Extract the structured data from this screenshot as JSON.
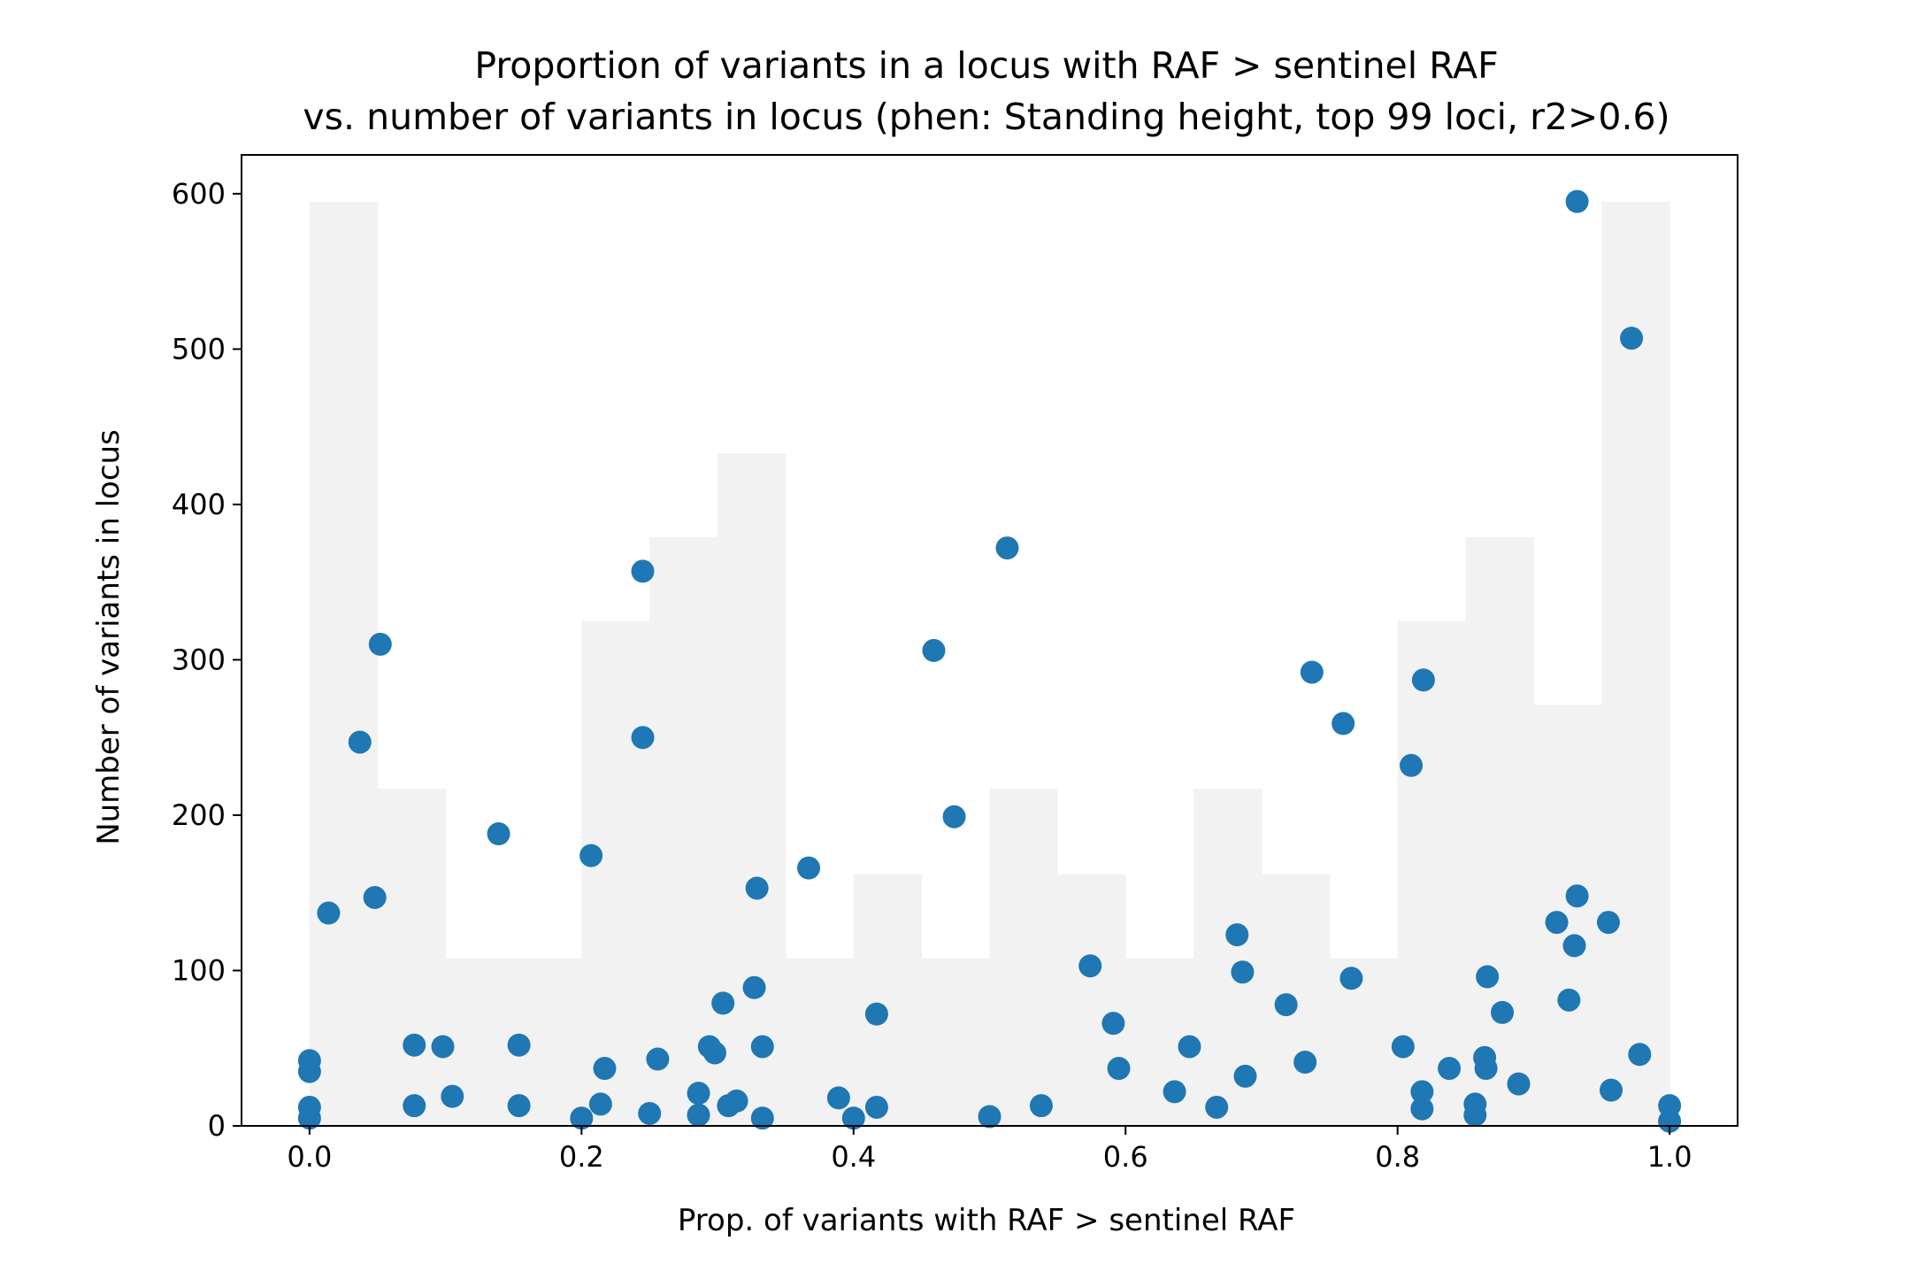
{
  "chart_data": {
    "type": "scatter",
    "title_lines": [
      "Proportion of variants in a locus with RAF > sentinel RAF",
      "vs. number of variants in locus (phen: Standing height, top 99 loci, r2>0.6)"
    ],
    "xlabel": "Prop. of variants with RAF > sentinel RAF",
    "ylabel": "Number of variants in locus",
    "xlim": [
      -0.05,
      1.05
    ],
    "ylim": [
      0,
      625
    ],
    "x_ticks": [
      0.0,
      0.2,
      0.4,
      0.6,
      0.8,
      1.0
    ],
    "x_tick_labels": [
      "0.0",
      "0.2",
      "0.4",
      "0.6",
      "0.8",
      "1.0"
    ],
    "y_ticks": [
      0,
      100,
      200,
      300,
      400,
      500,
      600
    ],
    "y_tick_labels": [
      "0",
      "100",
      "200",
      "300",
      "400",
      "500",
      "600"
    ],
    "grid": false,
    "colors": {
      "points": "#1f77b4",
      "histogram": "#f2f2f2",
      "axes": "#000000"
    },
    "background_histogram": {
      "bin_edges": [
        0.0,
        0.05,
        0.1,
        0.15,
        0.2,
        0.25,
        0.3,
        0.35,
        0.4,
        0.45,
        0.5,
        0.55,
        0.6,
        0.65,
        0.7,
        0.75,
        0.8,
        0.85,
        0.9,
        0.95,
        1.0
      ],
      "heights": [
        595,
        217,
        108,
        108,
        325,
        379,
        433,
        108,
        162,
        108,
        217,
        162,
        108,
        217,
        162,
        108,
        325,
        379,
        271,
        595
      ]
    },
    "points": [
      {
        "x": 0.0,
        "y": 42
      },
      {
        "x": 0.0,
        "y": 35
      },
      {
        "x": 0.0,
        "y": 12
      },
      {
        "x": 0.0,
        "y": 5
      },
      {
        "x": 0.014,
        "y": 137
      },
      {
        "x": 0.037,
        "y": 247
      },
      {
        "x": 0.048,
        "y": 147
      },
      {
        "x": 0.052,
        "y": 310
      },
      {
        "x": 0.077,
        "y": 52
      },
      {
        "x": 0.077,
        "y": 13
      },
      {
        "x": 0.098,
        "y": 51
      },
      {
        "x": 0.105,
        "y": 19
      },
      {
        "x": 0.139,
        "y": 188
      },
      {
        "x": 0.154,
        "y": 52
      },
      {
        "x": 0.154,
        "y": 13
      },
      {
        "x": 0.2,
        "y": 5
      },
      {
        "x": 0.207,
        "y": 174
      },
      {
        "x": 0.214,
        "y": 14
      },
      {
        "x": 0.217,
        "y": 37
      },
      {
        "x": 0.245,
        "y": 357
      },
      {
        "x": 0.245,
        "y": 250
      },
      {
        "x": 0.25,
        "y": 8
      },
      {
        "x": 0.256,
        "y": 43
      },
      {
        "x": 0.286,
        "y": 21
      },
      {
        "x": 0.286,
        "y": 7
      },
      {
        "x": 0.294,
        "y": 51
      },
      {
        "x": 0.298,
        "y": 47
      },
      {
        "x": 0.304,
        "y": 79
      },
      {
        "x": 0.308,
        "y": 13
      },
      {
        "x": 0.314,
        "y": 16
      },
      {
        "x": 0.327,
        "y": 89
      },
      {
        "x": 0.329,
        "y": 153
      },
      {
        "x": 0.333,
        "y": 5
      },
      {
        "x": 0.333,
        "y": 51
      },
      {
        "x": 0.367,
        "y": 166
      },
      {
        "x": 0.389,
        "y": 18
      },
      {
        "x": 0.4,
        "y": 5
      },
      {
        "x": 0.417,
        "y": 12
      },
      {
        "x": 0.417,
        "y": 72
      },
      {
        "x": 0.459,
        "y": 306
      },
      {
        "x": 0.474,
        "y": 199
      },
      {
        "x": 0.5,
        "y": 6
      },
      {
        "x": 0.513,
        "y": 372
      },
      {
        "x": 0.538,
        "y": 13
      },
      {
        "x": 0.574,
        "y": 103
      },
      {
        "x": 0.591,
        "y": 66
      },
      {
        "x": 0.595,
        "y": 37
      },
      {
        "x": 0.636,
        "y": 22
      },
      {
        "x": 0.647,
        "y": 51
      },
      {
        "x": 0.667,
        "y": 12
      },
      {
        "x": 0.682,
        "y": 123
      },
      {
        "x": 0.686,
        "y": 99
      },
      {
        "x": 0.688,
        "y": 32
      },
      {
        "x": 0.718,
        "y": 78
      },
      {
        "x": 0.732,
        "y": 41
      },
      {
        "x": 0.737,
        "y": 292
      },
      {
        "x": 0.76,
        "y": 259
      },
      {
        "x": 0.766,
        "y": 95
      },
      {
        "x": 0.804,
        "y": 51
      },
      {
        "x": 0.81,
        "y": 232
      },
      {
        "x": 0.818,
        "y": 22
      },
      {
        "x": 0.818,
        "y": 11
      },
      {
        "x": 0.819,
        "y": 287
      },
      {
        "x": 0.838,
        "y": 37
      },
      {
        "x": 0.857,
        "y": 14
      },
      {
        "x": 0.857,
        "y": 7
      },
      {
        "x": 0.864,
        "y": 44
      },
      {
        "x": 0.865,
        "y": 37
      },
      {
        "x": 0.866,
        "y": 96
      },
      {
        "x": 0.877,
        "y": 73
      },
      {
        "x": 0.889,
        "y": 27
      },
      {
        "x": 0.917,
        "y": 131
      },
      {
        "x": 0.926,
        "y": 81
      },
      {
        "x": 0.93,
        "y": 116
      },
      {
        "x": 0.932,
        "y": 148
      },
      {
        "x": 0.932,
        "y": 595
      },
      {
        "x": 0.955,
        "y": 131
      },
      {
        "x": 0.957,
        "y": 23
      },
      {
        "x": 0.972,
        "y": 507
      },
      {
        "x": 0.978,
        "y": 46
      },
      {
        "x": 1.0,
        "y": 13
      },
      {
        "x": 1.0,
        "y": 3
      }
    ]
  }
}
